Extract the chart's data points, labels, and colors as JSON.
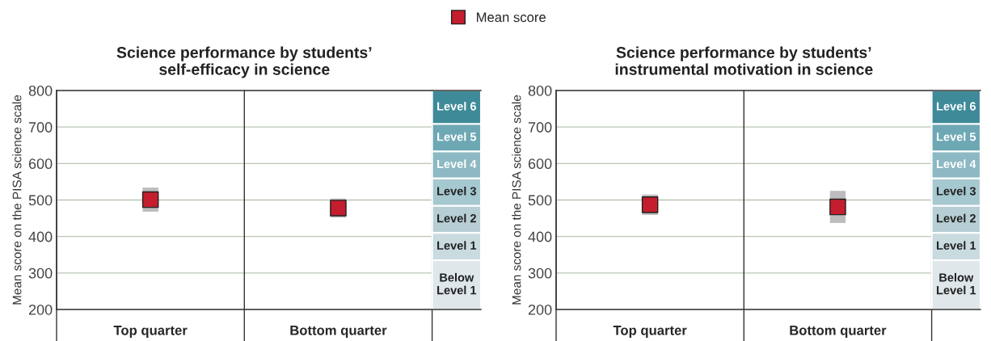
{
  "chart_data": [
    {
      "type": "scatter",
      "title": "Science performance by students’\nself-efficacy in science",
      "ylabel": "Mean score on the PISA science scale",
      "categories": [
        "Top quarter",
        "Bottom quarter"
      ],
      "series": [
        {
          "name": "Mean score",
          "color": "#c41e2e",
          "values": [
            501,
            478
          ],
          "errors": [
            33,
            26
          ]
        }
      ],
      "marker": "square",
      "ylim": [
        200,
        800
      ],
      "yticks": [
        200,
        300,
        400,
        500,
        600,
        700,
        800
      ],
      "grid": "y",
      "legend": "top",
      "bands": [
        {
          "axis": "y",
          "from": 708,
          "to": 800,
          "label": "Level 6",
          "color": "#3e8a99"
        },
        {
          "axis": "y",
          "from": 633,
          "to": 708,
          "label": "Level 5",
          "color": "#6ea8b5"
        },
        {
          "axis": "y",
          "from": 559,
          "to": 633,
          "label": "Level 4",
          "color": "#8cb9c3"
        },
        {
          "axis": "y",
          "from": 484,
          "to": 559,
          "label": "Level 3",
          "color": "#a6c8d0"
        },
        {
          "axis": "y",
          "from": 410,
          "to": 484,
          "label": "Level 2",
          "color": "#b8ced5"
        },
        {
          "axis": "y",
          "from": 335,
          "to": 410,
          "label": "Level 1",
          "color": "#cadbe0"
        },
        {
          "axis": "y",
          "from": 200,
          "to": 335,
          "label": "Below\nLevel 1",
          "color": "#dfe7ea"
        }
      ]
    },
    {
      "type": "scatter",
      "title": "Science performance by students’\ninstrumental motivation in science",
      "ylabel": "Mean score on the PISA science scale",
      "categories": [
        "Top quarter",
        "Bottom quarter"
      ],
      "series": [
        {
          "color": "#c41e2e",
          "values": [
            487,
            481
          ],
          "errors": [
            28,
            44
          ]
        }
      ],
      "marker": "square",
      "ylim": [
        200,
        800
      ],
      "yticks": [
        200,
        300,
        400,
        500,
        600,
        700,
        800
      ],
      "grid": "y",
      "bands": [
        {
          "axis": "y",
          "from": 708,
          "to": 800,
          "label": "Level 6",
          "color": "#3e8a99"
        },
        {
          "axis": "y",
          "from": 633,
          "to": 708,
          "label": "Level 5",
          "color": "#6ea8b5"
        },
        {
          "axis": "y",
          "from": 559,
          "to": 633,
          "label": "Level 4",
          "color": "#8cb9c3"
        },
        {
          "axis": "y",
          "from": 484,
          "to": 559,
          "label": "Level 3",
          "color": "#a6c8d0"
        },
        {
          "axis": "y",
          "from": 410,
          "to": 484,
          "label": "Level 2",
          "color": "#b8ced5"
        },
        {
          "axis": "y",
          "from": 335,
          "to": 410,
          "label": "Level 1",
          "color": "#cadbe0"
        },
        {
          "axis": "y",
          "from": 200,
          "to": 335,
          "label": "Below\nLevel 1",
          "color": "#dfe7ea"
        }
      ]
    }
  ]
}
